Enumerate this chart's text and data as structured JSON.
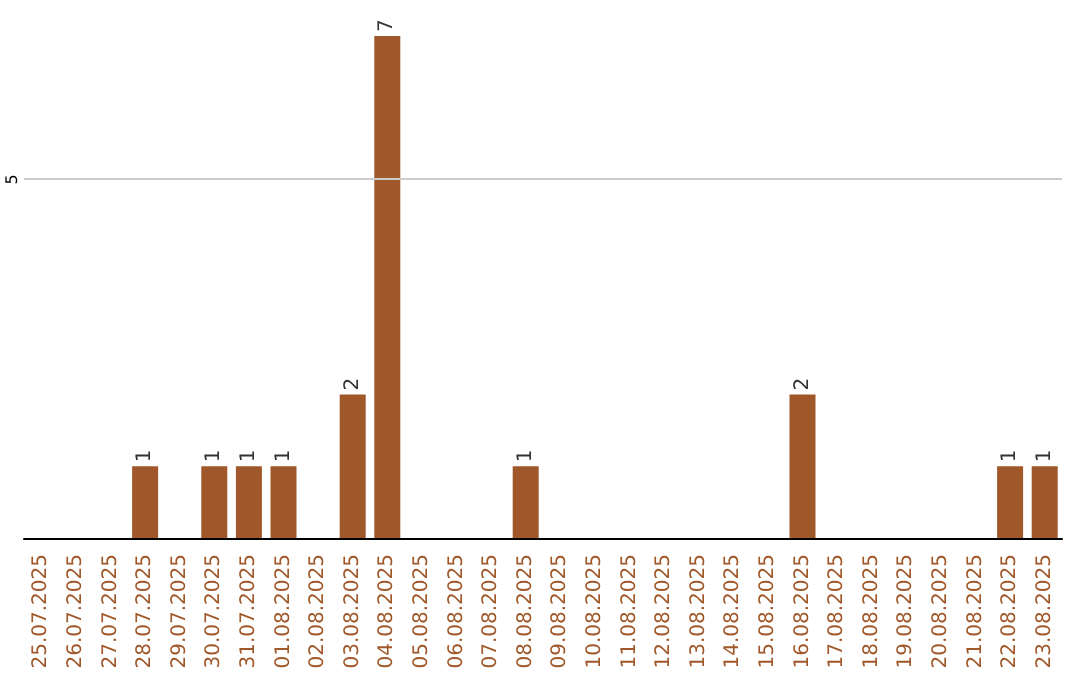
{
  "chart_data": {
    "type": "bar",
    "categories": [
      "25.07.2025",
      "26.07.2025",
      "27.07.2025",
      "28.07.2025",
      "29.07.2025",
      "30.07.2025",
      "31.07.2025",
      "01.08.2025",
      "02.08.2025",
      "03.08.2025",
      "04.08.2025",
      "05.08.2025",
      "06.08.2025",
      "07.08.2025",
      "08.08.2025",
      "09.08.2025",
      "10.08.2025",
      "11.08.2025",
      "12.08.2025",
      "13.08.2025",
      "14.08.2025",
      "15.08.2025",
      "16.08.2025",
      "17.08.2025",
      "18.08.2025",
      "19.08.2025",
      "20.08.2025",
      "21.08.2025",
      "22.08.2025",
      "23.08.2025"
    ],
    "values": [
      0,
      0,
      0,
      1,
      0,
      1,
      1,
      1,
      0,
      2,
      7,
      0,
      0,
      0,
      1,
      0,
      0,
      0,
      0,
      0,
      0,
      0,
      2,
      0,
      0,
      0,
      0,
      0,
      1,
      1
    ],
    "value_labels": [
      null,
      null,
      null,
      "1",
      null,
      "1",
      "1",
      "1",
      null,
      "2",
      "7",
      null,
      null,
      null,
      "1",
      null,
      null,
      null,
      null,
      null,
      null,
      null,
      "2",
      null,
      null,
      null,
      null,
      null,
      "1",
      "1"
    ],
    "color": "#a0582a",
    "ref_lines": [
      {
        "axis": "y",
        "value": 5,
        "label": "5",
        "color": "#cccccc"
      }
    ]
  }
}
